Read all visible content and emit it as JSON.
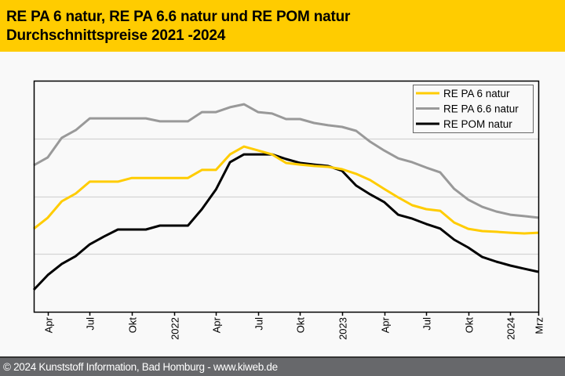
{
  "header": {
    "title_line1": "RE PA 6 natur, RE PA 6.6 natur und RE POM natur",
    "title_line2": "Durchschnittspreise 2021 -2024",
    "background_color": "#ffcc00"
  },
  "footer": {
    "text": "© 2024 Kunststoff Information, Bad Homburg - www.kiweb.de"
  },
  "chart_data": {
    "type": "line",
    "title": "RE PA 6 natur, RE PA 6.6 natur und RE POM natur Durchschnittspreise 2021 -2024",
    "xlabel": "",
    "ylabel": "",
    "y_axis_labels_shown": false,
    "y_units": "relative index (no y-axis values printed; 0 = plot bottom, 100 = plot top)",
    "ylim": [
      0,
      100
    ],
    "grid": {
      "horizontal": true,
      "values": [
        25,
        50,
        75
      ]
    },
    "legend": {
      "position": "top-right",
      "boxed": true
    },
    "x": [
      "Mrz 2021",
      "Apr 2021",
      "Mai 2021",
      "Jun 2021",
      "Jul 2021",
      "Aug 2021",
      "Sep 2021",
      "Okt 2021",
      "Nov 2021",
      "Dez 2021",
      "Jan 2022",
      "Feb 2022",
      "Mrz 2022",
      "Apr 2022",
      "Mai 2022",
      "Jun 2022",
      "Jul 2022",
      "Aug 2022",
      "Sep 2022",
      "Okt 2022",
      "Nov 2022",
      "Dez 2022",
      "Jan 2023",
      "Feb 2023",
      "Mrz 2023",
      "Apr 2023",
      "Mai 2023",
      "Jun 2023",
      "Jul 2023",
      "Aug 2023",
      "Sep 2023",
      "Okt 2023",
      "Nov 2023",
      "Dez 2023",
      "Jan 2024",
      "Feb 2024",
      "Mrz 2024"
    ],
    "x_ticks": [
      {
        "index": 1,
        "label": "Apr"
      },
      {
        "index": 4,
        "label": "Jul"
      },
      {
        "index": 7,
        "label": "Okt"
      },
      {
        "index": 10,
        "label": "2022"
      },
      {
        "index": 13,
        "label": "Apr"
      },
      {
        "index": 16,
        "label": "Jul"
      },
      {
        "index": 19,
        "label": "Okt"
      },
      {
        "index": 22,
        "label": "2023"
      },
      {
        "index": 25,
        "label": "Apr"
      },
      {
        "index": 28,
        "label": "Jul"
      },
      {
        "index": 31,
        "label": "Okt"
      },
      {
        "index": 34,
        "label": "2024"
      },
      {
        "index": 36,
        "label": "Mrz"
      }
    ],
    "series": [
      {
        "name": "RE PA 6 natur",
        "color": "#ffcc00",
        "values": [
          35.9,
          40.7,
          47.8,
          51.2,
          56.3,
          56.3,
          56.3,
          57.9,
          57.9,
          57.9,
          57.9,
          57.9,
          61.4,
          61.4,
          68.1,
          71.5,
          69.8,
          68.1,
          64.4,
          63.7,
          63.1,
          62.7,
          61.7,
          59.7,
          57.0,
          53.2,
          49.5,
          46.1,
          44.4,
          43.7,
          38.6,
          35.9,
          34.9,
          34.6,
          34.2,
          33.9,
          34.2
        ]
      },
      {
        "name": "RE PA 6.6 natur",
        "color": "#999999",
        "values": [
          63.4,
          66.8,
          75.3,
          78.6,
          83.7,
          83.7,
          83.7,
          83.7,
          83.7,
          82.4,
          82.4,
          82.4,
          86.4,
          86.4,
          88.5,
          89.8,
          86.4,
          85.8,
          83.4,
          83.4,
          81.7,
          80.7,
          80.0,
          78.3,
          73.6,
          69.8,
          66.4,
          64.7,
          62.4,
          60.3,
          53.2,
          48.5,
          45.4,
          43.4,
          42.0,
          41.4,
          40.7
        ]
      },
      {
        "name": "RE POM natur",
        "color": "#000000",
        "values": [
          9.5,
          15.9,
          20.7,
          24.1,
          29.2,
          32.5,
          35.6,
          35.6,
          35.6,
          37.3,
          37.3,
          37.3,
          44.4,
          52.9,
          64.7,
          68.1,
          68.1,
          68.1,
          66.1,
          64.4,
          63.7,
          63.1,
          61.0,
          54.6,
          50.8,
          47.5,
          42.0,
          40.3,
          38.0,
          36.0,
          31.2,
          27.8,
          23.7,
          21.7,
          20.0,
          18.6,
          17.3
        ]
      }
    ]
  }
}
